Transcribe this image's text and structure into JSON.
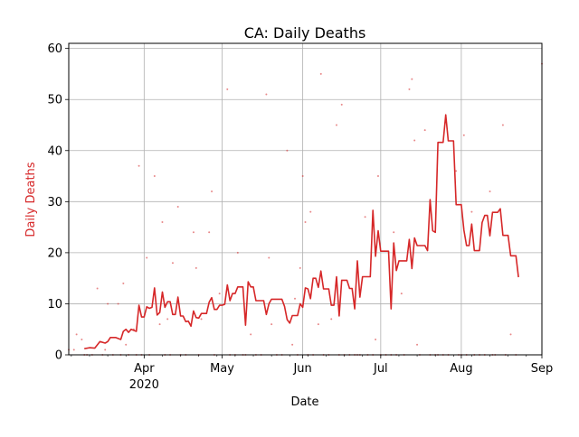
{
  "chart_data": {
    "type": "line",
    "title": "CA: Daily Deaths",
    "xlabel": "Date",
    "ylabel": "Daily Deaths",
    "x_range": [
      "2020-03-03",
      "2020-09-01"
    ],
    "xlim": [
      0,
      182
    ],
    "ylim": [
      0,
      61
    ],
    "grid": true,
    "y_ticks": [
      0,
      10,
      20,
      30,
      40,
      50,
      60
    ],
    "x_ticks": [
      {
        "day": 29,
        "label": "Apr",
        "sublabel": "2020"
      },
      {
        "day": 59,
        "label": "May",
        "sublabel": ""
      },
      {
        "day": 90,
        "label": "Jun",
        "sublabel": ""
      },
      {
        "day": 120,
        "label": "Jul",
        "sublabel": ""
      },
      {
        "day": 151,
        "label": "Aug",
        "sublabel": ""
      },
      {
        "day": 182,
        "label": "Sep",
        "sublabel": ""
      }
    ],
    "colors": {
      "series": "#d62728",
      "grid": "#b0b0b0",
      "axis": "#000000"
    },
    "series": [
      {
        "kind": "line",
        "note": "rolling average",
        "points": [
          [
            6,
            1.2
          ],
          [
            8,
            1.4
          ],
          [
            10,
            1.3
          ],
          [
            12,
            2.6
          ],
          [
            14,
            2.3
          ],
          [
            15,
            2.6
          ],
          [
            16,
            3.4
          ],
          [
            18,
            3.4
          ],
          [
            20,
            3.0
          ],
          [
            21,
            4.6
          ],
          [
            22,
            5.0
          ],
          [
            23,
            4.4
          ],
          [
            24,
            5.0
          ],
          [
            26,
            4.6
          ],
          [
            27,
            9.7
          ],
          [
            28,
            7.4
          ],
          [
            29,
            7.4
          ],
          [
            30,
            9.4
          ],
          [
            31,
            9.1
          ],
          [
            32,
            9.3
          ],
          [
            33,
            13.1
          ],
          [
            34,
            7.8
          ],
          [
            35,
            8.3
          ],
          [
            36,
            12.3
          ],
          [
            37,
            9.3
          ],
          [
            38,
            10.4
          ],
          [
            39,
            10.4
          ],
          [
            40,
            7.9
          ],
          [
            41,
            7.9
          ],
          [
            42,
            11.3
          ],
          [
            43,
            7.6
          ],
          [
            44,
            7.6
          ],
          [
            45,
            6.5
          ],
          [
            46,
            6.6
          ],
          [
            47,
            5.6
          ],
          [
            48,
            8.6
          ],
          [
            49,
            7.3
          ],
          [
            50,
            7.2
          ],
          [
            51,
            8.1
          ],
          [
            52,
            8.1
          ],
          [
            53,
            8.1
          ],
          [
            54,
            10.3
          ],
          [
            55,
            11.2
          ],
          [
            56,
            8.9
          ],
          [
            57,
            8.9
          ],
          [
            58,
            9.7
          ],
          [
            59,
            9.7
          ],
          [
            60,
            9.9
          ],
          [
            61,
            13.7
          ],
          [
            62,
            10.6
          ],
          [
            63,
            12.0
          ],
          [
            64,
            12.0
          ],
          [
            65,
            13.3
          ],
          [
            66,
            13.3
          ],
          [
            67,
            13.3
          ],
          [
            68,
            5.8
          ],
          [
            69,
            14.3
          ],
          [
            70,
            13.3
          ],
          [
            71,
            13.3
          ],
          [
            72,
            10.6
          ],
          [
            73,
            10.6
          ],
          [
            74,
            10.6
          ],
          [
            75,
            10.6
          ],
          [
            76,
            7.9
          ],
          [
            77,
            10.0
          ],
          [
            78,
            10.9
          ],
          [
            79,
            10.9
          ],
          [
            80,
            10.9
          ],
          [
            81,
            10.9
          ],
          [
            82,
            10.9
          ],
          [
            83,
            9.5
          ],
          [
            84,
            6.9
          ],
          [
            85,
            6.2
          ],
          [
            86,
            7.7
          ],
          [
            87,
            7.7
          ],
          [
            88,
            7.7
          ],
          [
            89,
            10.0
          ],
          [
            90,
            9.3
          ],
          [
            91,
            13.1
          ],
          [
            92,
            12.9
          ],
          [
            93,
            11.0
          ],
          [
            94,
            15.0
          ],
          [
            95,
            15.0
          ],
          [
            96,
            13.2
          ],
          [
            97,
            16.4
          ],
          [
            98,
            12.9
          ],
          [
            99,
            12.9
          ],
          [
            100,
            12.9
          ],
          [
            101,
            9.7
          ],
          [
            102,
            9.7
          ],
          [
            103,
            15.3
          ],
          [
            104,
            7.6
          ],
          [
            105,
            14.6
          ],
          [
            106,
            14.6
          ],
          [
            107,
            14.6
          ],
          [
            108,
            13.0
          ],
          [
            109,
            13.0
          ],
          [
            110,
            9.0
          ],
          [
            111,
            18.4
          ],
          [
            112,
            11.3
          ],
          [
            113,
            15.3
          ],
          [
            114,
            15.3
          ],
          [
            115,
            15.3
          ],
          [
            116,
            15.3
          ],
          [
            117,
            28.3
          ],
          [
            118,
            19.3
          ],
          [
            119,
            24.3
          ],
          [
            120,
            20.3
          ],
          [
            121,
            20.3
          ],
          [
            122,
            20.3
          ],
          [
            123,
            20.3
          ],
          [
            124,
            9.0
          ],
          [
            125,
            21.9
          ],
          [
            126,
            16.5
          ],
          [
            127,
            18.4
          ],
          [
            128,
            18.4
          ],
          [
            129,
            18.4
          ],
          [
            130,
            18.4
          ],
          [
            131,
            22.6
          ],
          [
            132,
            16.9
          ],
          [
            133,
            22.9
          ],
          [
            134,
            21.4
          ],
          [
            135,
            21.4
          ],
          [
            136,
            21.4
          ],
          [
            137,
            21.4
          ],
          [
            138,
            20.4
          ],
          [
            139,
            30.4
          ],
          [
            140,
            24.3
          ],
          [
            141,
            24.0
          ],
          [
            142,
            41.6
          ],
          [
            143,
            41.6
          ],
          [
            144,
            41.6
          ],
          [
            145,
            47.0
          ],
          [
            146,
            41.9
          ],
          [
            147,
            41.9
          ],
          [
            148,
            41.9
          ],
          [
            149,
            29.4
          ],
          [
            150,
            29.4
          ],
          [
            151,
            29.4
          ],
          [
            152,
            24.4
          ],
          [
            153,
            21.4
          ],
          [
            154,
            21.4
          ],
          [
            155,
            25.6
          ],
          [
            156,
            20.4
          ],
          [
            157,
            20.4
          ],
          [
            158,
            20.4
          ],
          [
            159,
            25.9
          ],
          [
            160,
            27.3
          ],
          [
            161,
            27.3
          ],
          [
            162,
            23.3
          ],
          [
            163,
            27.9
          ],
          [
            164,
            27.9
          ],
          [
            165,
            27.9
          ],
          [
            166,
            28.6
          ],
          [
            167,
            23.4
          ],
          [
            168,
            23.4
          ],
          [
            169,
            23.4
          ],
          [
            170,
            19.4
          ],
          [
            171,
            19.4
          ],
          [
            172,
            19.4
          ],
          [
            173,
            15.2
          ]
        ]
      },
      {
        "kind": "scatter",
        "note": "daily values",
        "points": [
          [
            0,
            1
          ],
          [
            2,
            1
          ],
          [
            3,
            4
          ],
          [
            5,
            3
          ],
          [
            6,
            0
          ],
          [
            7,
            0
          ],
          [
            9,
            0
          ],
          [
            11,
            13
          ],
          [
            13,
            0
          ],
          [
            14,
            1
          ],
          [
            15,
            10
          ],
          [
            17,
            0
          ],
          [
            19,
            10
          ],
          [
            20,
            0
          ],
          [
            21,
            14
          ],
          [
            22,
            2
          ],
          [
            23,
            0
          ],
          [
            25,
            5
          ],
          [
            26,
            0
          ],
          [
            27,
            37
          ],
          [
            28,
            0
          ],
          [
            30,
            19
          ],
          [
            31,
            0
          ],
          [
            33,
            35
          ],
          [
            35,
            6
          ],
          [
            36,
            26
          ],
          [
            37,
            0
          ],
          [
            38,
            7
          ],
          [
            39,
            0
          ],
          [
            40,
            18
          ],
          [
            42,
            29
          ],
          [
            43,
            0
          ],
          [
            45,
            0
          ],
          [
            48,
            24
          ],
          [
            49,
            17
          ],
          [
            50,
            0
          ],
          [
            51,
            7
          ],
          [
            54,
            24
          ],
          [
            55,
            32
          ],
          [
            56,
            0
          ],
          [
            58,
            12
          ],
          [
            61,
            52
          ],
          [
            62,
            0
          ],
          [
            64,
            0
          ],
          [
            65,
            20
          ],
          [
            67,
            0
          ],
          [
            68,
            0
          ],
          [
            70,
            4
          ],
          [
            72,
            0
          ],
          [
            74,
            0
          ],
          [
            76,
            51
          ],
          [
            77,
            19
          ],
          [
            78,
            6
          ],
          [
            80,
            0
          ],
          [
            82,
            0
          ],
          [
            84,
            40
          ],
          [
            86,
            2
          ],
          [
            87,
            11
          ],
          [
            88,
            0
          ],
          [
            89,
            17
          ],
          [
            90,
            35
          ],
          [
            91,
            26
          ],
          [
            92,
            0
          ],
          [
            93,
            28
          ],
          [
            94,
            0
          ],
          [
            96,
            6
          ],
          [
            97,
            55
          ],
          [
            98,
            0
          ],
          [
            100,
            0
          ],
          [
            101,
            7
          ],
          [
            103,
            45
          ],
          [
            104,
            0
          ],
          [
            105,
            49
          ],
          [
            106,
            0
          ],
          [
            108,
            0
          ],
          [
            110,
            0
          ],
          [
            111,
            0
          ],
          [
            112,
            0
          ],
          [
            114,
            27
          ],
          [
            115,
            0
          ],
          [
            117,
            0
          ],
          [
            118,
            3
          ],
          [
            119,
            35
          ],
          [
            120,
            0
          ],
          [
            122,
            0
          ],
          [
            124,
            0
          ],
          [
            125,
            24
          ],
          [
            126,
            0
          ],
          [
            128,
            12
          ],
          [
            129,
            0
          ],
          [
            131,
            52
          ],
          [
            132,
            54
          ],
          [
            133,
            42
          ],
          [
            134,
            2
          ],
          [
            135,
            0
          ],
          [
            137,
            44
          ],
          [
            139,
            0
          ],
          [
            141,
            0
          ],
          [
            142,
            0
          ],
          [
            144,
            0
          ],
          [
            146,
            0
          ],
          [
            149,
            36
          ],
          [
            150,
            0
          ],
          [
            151,
            0
          ],
          [
            152,
            43
          ],
          [
            153,
            0
          ],
          [
            155,
            28
          ],
          [
            156,
            0
          ],
          [
            158,
            0
          ],
          [
            160,
            0
          ],
          [
            162,
            32
          ],
          [
            163,
            0
          ],
          [
            164,
            0
          ],
          [
            167,
            45
          ],
          [
            168,
            0
          ],
          [
            170,
            4
          ],
          [
            172,
            0
          ],
          [
            182,
            57
          ]
        ]
      }
    ]
  }
}
